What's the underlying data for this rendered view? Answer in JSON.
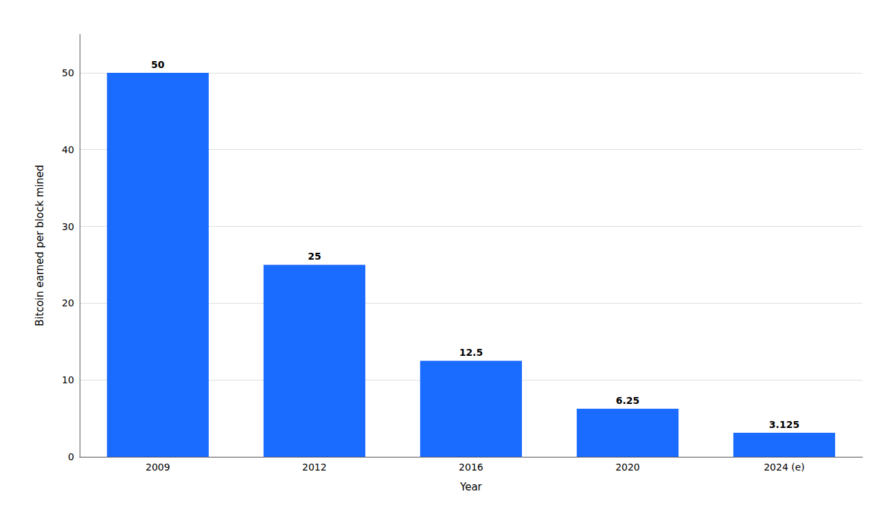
{
  "chart_data": {
    "type": "bar",
    "categories": [
      "2009",
      "2012",
      "2016",
      "2020",
      "2024 (e)"
    ],
    "values": [
      50,
      25,
      12.5,
      6.25,
      3.125
    ],
    "color": "#1a6bff",
    "xlabel": "Year",
    "ylabel": "Bitcoin earned per block mined",
    "ylim": [
      0,
      55
    ],
    "yticks": [
      0,
      10,
      20,
      30,
      40,
      50
    ],
    "grid": true,
    "data_labels": true
  }
}
